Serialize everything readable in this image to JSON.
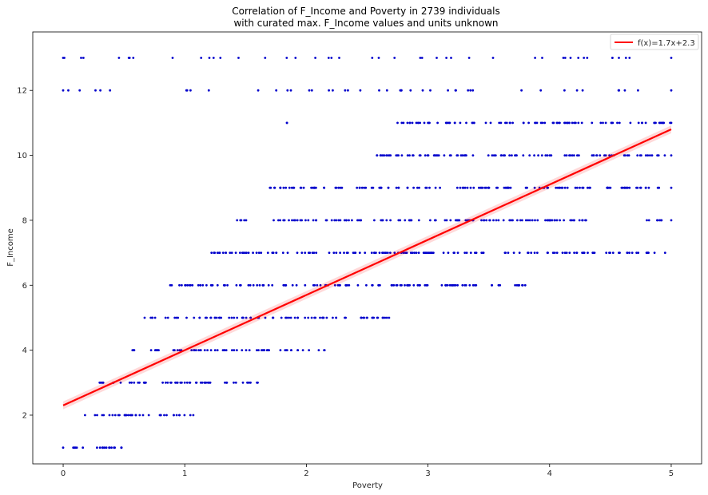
{
  "chart_data": {
    "type": "scatter",
    "title": "Correlation of F_Income and Poverty in 2739 individuals",
    "subtitle": "with curated max. F_Income values and units unknown",
    "xlabel": "Poverty",
    "ylabel": "F_Income",
    "xlim": [
      -0.25,
      5.25
    ],
    "ylim": [
      0.5,
      13.8
    ],
    "xticks": [
      "0",
      "1",
      "2",
      "3",
      "4",
      "5"
    ],
    "yticks": [
      "2",
      "4",
      "6",
      "8",
      "10",
      "12"
    ],
    "grid": false,
    "legend": {
      "placement": "top-right",
      "entries": [
        "f(x)=1.7x+2.3"
      ]
    },
    "scatter_color": "#0000cc",
    "line_color": "#ff0000",
    "fit": {
      "slope": 1.7,
      "intercept": 2.3,
      "x_range": [
        0,
        5
      ]
    },
    "bands": [
      {
        "y": 1,
        "x_ranges": [
          [
            0.0,
            0.48
          ]
        ]
      },
      {
        "y": 2,
        "x_ranges": [
          [
            0.18,
            1.07
          ]
        ]
      },
      {
        "y": 3,
        "x_ranges": [
          [
            0.3,
            1.6
          ]
        ]
      },
      {
        "y": 4,
        "x_ranges": [
          [
            0.57,
            2.15
          ]
        ]
      },
      {
        "y": 5,
        "x_ranges": [
          [
            0.67,
            2.68
          ]
        ]
      },
      {
        "y": 6,
        "x_ranges": [
          [
            0.88,
            3.8
          ]
        ]
      },
      {
        "y": 7,
        "x_ranges": [
          [
            1.22,
            4.95
          ]
        ]
      },
      {
        "y": 8,
        "x_ranges": [
          [
            1.43,
            4.3
          ],
          [
            4.8,
            5.0
          ]
        ]
      },
      {
        "y": 9,
        "x_ranges": [
          [
            1.7,
            5.0
          ]
        ]
      },
      {
        "y": 10,
        "x_ranges": [
          [
            2.58,
            5.0
          ]
        ]
      },
      {
        "y": 11,
        "x_ranges": [
          [
            1.84,
            1.84
          ],
          [
            2.75,
            5.0
          ]
        ]
      },
      {
        "y": 12,
        "x_ranges": [
          [
            0.0,
            5.0
          ]
        ]
      },
      {
        "y": 13,
        "x_ranges": [
          [
            0.0,
            5.0
          ]
        ]
      }
    ]
  }
}
